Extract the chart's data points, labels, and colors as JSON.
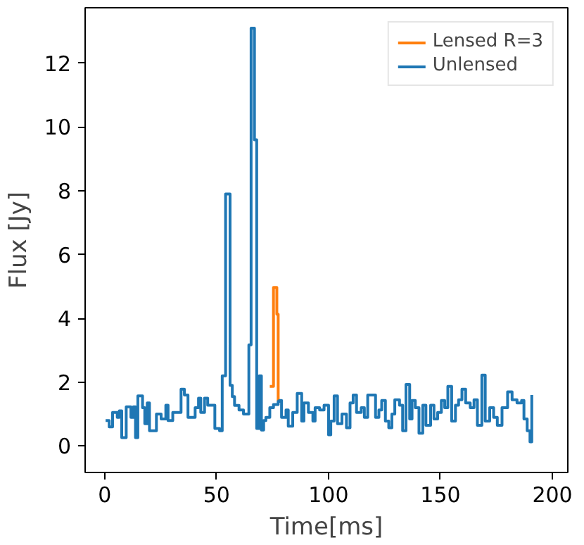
{
  "chart_data": {
    "type": "step",
    "xlabel": "Time[ms]",
    "ylabel": "Flux [Jy]",
    "xlim": [
      -8.75,
      206.9
    ],
    "ylim": [
      -0.83,
      13.74
    ],
    "xticks": [
      0,
      50,
      100,
      150,
      200
    ],
    "yticks": [
      0,
      2,
      4,
      6,
      8,
      10,
      12
    ],
    "grid": false,
    "legend": "top right",
    "series": [
      {
        "name": "Lensed R=3",
        "color": "#ff7f0e",
        "x": [
          73.75,
          75.4,
          76.9,
          77.5
        ],
        "values": [
          1.87,
          4.97,
          4.13,
          1.4
        ]
      },
      {
        "name": "Unlensed",
        "color": "#1f77b4",
        "x": [
          0.4,
          2,
          3.5,
          5.6,
          6.5,
          7.6,
          9.6,
          11.7,
          12.8,
          13.75,
          14.8,
          16.9,
          17.9,
          19,
          20,
          22.1,
          23.1,
          25.2,
          27.3,
          28.3,
          30.4,
          32.5,
          34.1,
          35.6,
          37.2,
          38.8,
          40.4,
          41.9,
          42.9,
          44.6,
          46,
          48.1,
          49.2,
          51.3,
          52.5,
          54,
          56,
          57,
          58,
          60,
          62,
          64.4,
          65.4,
          66.9,
          67.9,
          69,
          70,
          71,
          72,
          73.75,
          75.4,
          77.5,
          78,
          79,
          81,
          82,
          84,
          86,
          88,
          89,
          91,
          93,
          94,
          96,
          98,
          100,
          101,
          102.5,
          104,
          106,
          108,
          109.6,
          111,
          112.5,
          114.6,
          116,
          117.5,
          119.6,
          121,
          122.5,
          123.75,
          125.4,
          126.9,
          128.3,
          129.6,
          131.7,
          133.1,
          134.6,
          136.25,
          137.3,
          138.75,
          140.4,
          142.1,
          143.5,
          145.6,
          147.1,
          148.75,
          150.4,
          151.9,
          153.3,
          155,
          156.7,
          158.1,
          159.6,
          161.25,
          163.3,
          165,
          166.5,
          168.5,
          170,
          172,
          173.75,
          175.4,
          177.5,
          180,
          182,
          184.2,
          186.25,
          187.3,
          188.75,
          190,
          190.8
        ],
        "values": [
          0.8,
          0.6,
          1.05,
          0.9,
          1.1,
          0.26,
          1.23,
          0.9,
          1.23,
          0.26,
          1.57,
          1.2,
          0.7,
          1.35,
          0.48,
          0.48,
          1.0,
          0.85,
          1.28,
          0.8,
          1.05,
          1.05,
          1.78,
          1.6,
          0.9,
          0.9,
          1.2,
          1.5,
          1.05,
          1.5,
          1.28,
          1.28,
          0.55,
          0.48,
          2.2,
          7.9,
          1.9,
          1.55,
          1.27,
          1.13,
          1.0,
          3.17,
          13.1,
          9.6,
          0.55,
          2.2,
          0.5,
          0.8,
          0.9,
          1.2,
          1.3,
          1.4,
          1.43,
          0.9,
          1.13,
          0.62,
          1.05,
          1.65,
          0.78,
          1.35,
          1.05,
          0.78,
          1.2,
          1.13,
          1.28,
          0.35,
          0.78,
          1.57,
          0.7,
          1.0,
          0.57,
          1.35,
          1.6,
          1.05,
          1.2,
          0.9,
          1.6,
          1.6,
          0.9,
          1.13,
          1.43,
          0.78,
          0.57,
          1.0,
          1.45,
          1.28,
          0.48,
          1.93,
          0.85,
          1.43,
          1.2,
          0.4,
          1.28,
          0.65,
          1.28,
          0.85,
          1.05,
          1.43,
          1.2,
          1.87,
          0.78,
          1.28,
          1.45,
          1.78,
          1.35,
          1.2,
          1.45,
          0.65,
          2.22,
          0.78,
          1.2,
          0.9,
          0.65,
          1.2,
          1.7,
          1.45,
          1.35,
          1.43,
          0.85,
          0.48,
          0.13,
          1.6
        ]
      }
    ]
  }
}
